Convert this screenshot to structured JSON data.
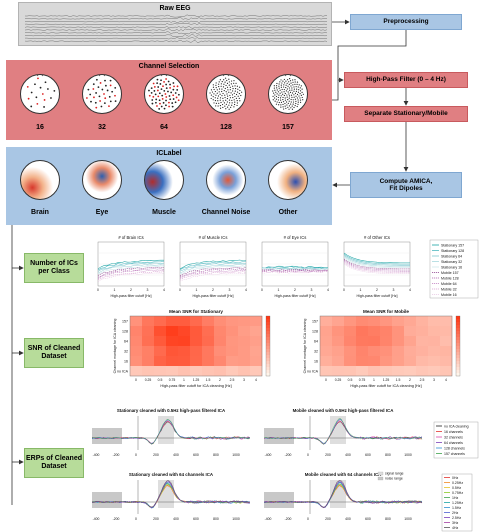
{
  "raw_eeg": {
    "title": "Raw EEG"
  },
  "channel_selection": {
    "title": "Channel Selection",
    "counts": [
      "16",
      "32",
      "64",
      "128",
      "157"
    ]
  },
  "iclabel": {
    "title": "ICLabel",
    "classes": [
      "Brain",
      "Eye",
      "Muscle",
      "Channel Noise",
      "Other"
    ]
  },
  "pipeline": {
    "preprocessing": "Preprocessing",
    "highpass": "High-Pass Filter (0 – 4 Hz)",
    "separate": "Separate Stationary/Mobile",
    "amica_line1": "Compute AMICA,",
    "amica_line2": "Fit Dipoles"
  },
  "results": {
    "num_ics_line1": "Number of ICs",
    "num_ics_line2": "per Class",
    "snr_line1": "SNR of Cleaned",
    "snr_line2": "Dataset",
    "erp_line1": "ERPs of Cleaned",
    "erp_line2": "Dataset"
  },
  "ic_plots": {
    "titles": [
      "# of Brain ICs",
      "# of Muscle ICs",
      "# of Eye ICs",
      "# of Other ICs"
    ],
    "xlabel": "High-pass filter cutoff [Hz]",
    "legend": [
      "Stationary 157",
      "Stationary 128",
      "Stationary 64",
      "Stationary 32",
      "Stationary 16",
      "Mobile 157",
      "Mobile 128",
      "Mobile 64",
      "Mobile 32",
      "Mobile 16"
    ],
    "legend_colors": [
      "#1aa3a3",
      "#4fb8c0",
      "#7fc8d0",
      "#a9d8de",
      "#cfe8ec",
      "#8a3f8a",
      "#a85ca8",
      "#c07ec0",
      "#d8a0d0",
      "#e8c8e4"
    ]
  },
  "snr": {
    "title_left": "Mean SNR for Stationary",
    "title_right": "Mean SNR for Mobile",
    "ylabel": "Channel montage for ICA cleaning",
    "xlabel": "High-pass filter cutoff for ICA cleaning [Hz]",
    "yticks": [
      "157",
      "128",
      "64",
      "32",
      "16",
      "no ICA"
    ],
    "xticks": [
      "0",
      "0.25",
      "0.5",
      "0.75",
      "1",
      "1.25",
      "1.5",
      "2",
      "2.5",
      "3",
      "4"
    ]
  },
  "erp": {
    "title_a": "Stationary cleaned with 0.5Hz high-pass filtered ICA",
    "title_b": "Mobile cleaned with 0.5Hz high-pass filtered ICA",
    "title_c": "Stationary cleaned with 64 channels ICA",
    "title_d": "Mobile cleaned with 64 channels ICA",
    "legend_top": [
      "no ICA cleaning",
      "16 channels",
      "32 channels",
      "64 channels",
      "128 channels",
      "157 channels"
    ],
    "legend_top_colors": [
      "#222222",
      "#e3342f",
      "#d946a8",
      "#7a3fb8",
      "#2f8fd0",
      "#3fa34d"
    ],
    "legend_bottom": [
      "0Hz",
      "0.25Hz",
      "0.5Hz",
      "0.75Hz",
      "1Hz",
      "1.25Hz",
      "1.5Hz",
      "2Hz",
      "2.5Hz",
      "3Hz",
      "4Hz"
    ],
    "legend_bottom_colors": [
      "#e3342f",
      "#f08a24",
      "#e6c229",
      "#8ac926",
      "#3fa34d",
      "#1aa3a3",
      "#2f8fd0",
      "#4b5fd0",
      "#7a3fb8",
      "#a33fa3",
      "#555555"
    ],
    "signal_label": "signal range",
    "noise_label": "noise range",
    "xticks": [
      "-400",
      "-200",
      "0",
      "200",
      "400",
      "600",
      "800",
      "1000"
    ]
  },
  "colors": {
    "gray": "#d9d9d9",
    "red": "#e07f82",
    "blue": "#a9c6e4",
    "green": "#b7dc9a",
    "proc_blue": "#a9c6e4",
    "proc_red": "#e07f82"
  }
}
